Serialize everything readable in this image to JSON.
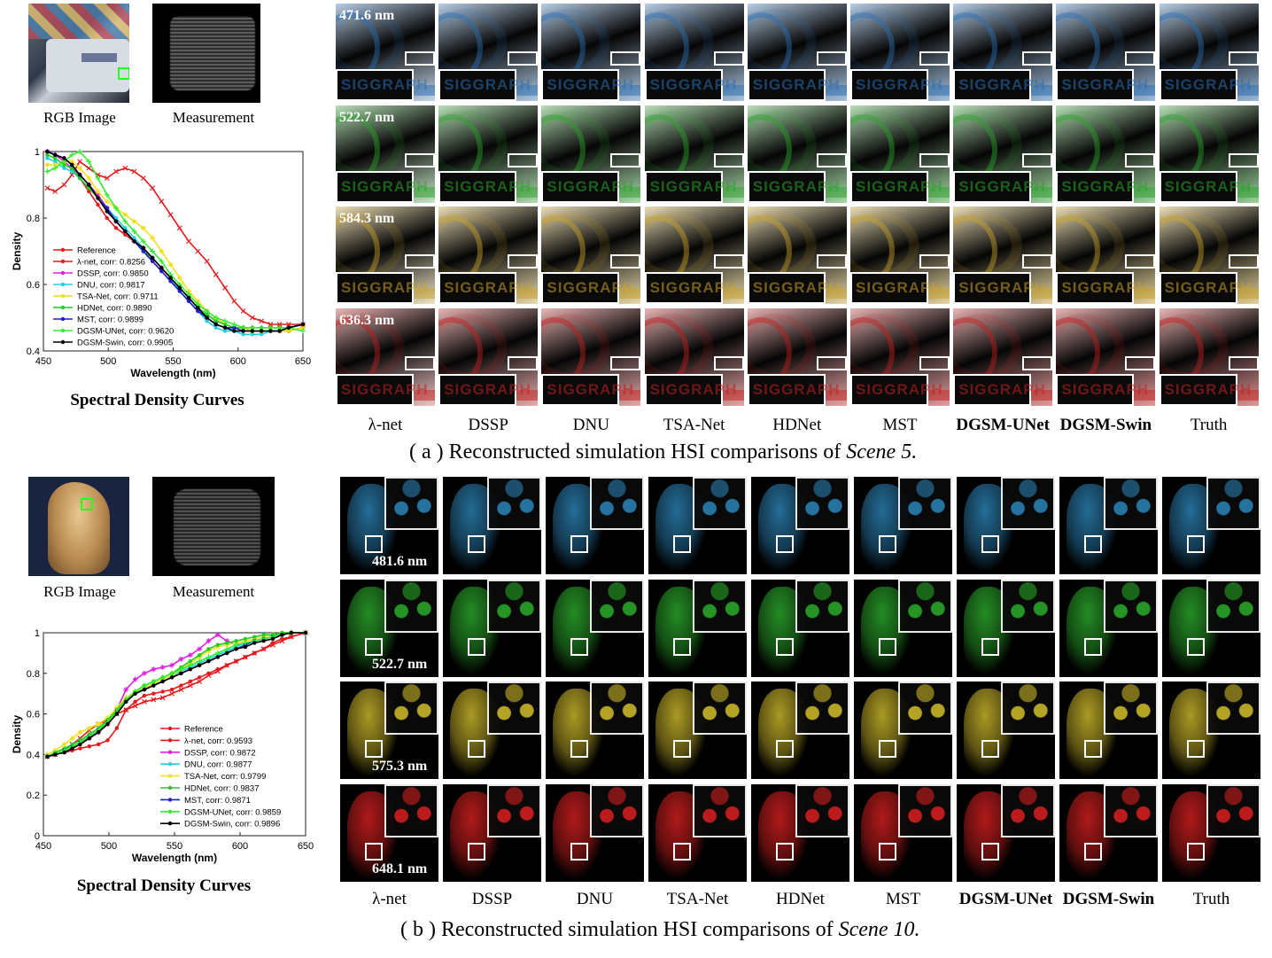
{
  "panel_a": {
    "rgb_label": "RGB Image",
    "measurement_label": "Measurement",
    "chart_title": "Spectral Density Curves",
    "wavelengths": [
      "471.6 nm",
      "522.7 nm",
      "584.3 nm",
      "636.3 nm"
    ],
    "row_colors": [
      "#2a6fb5",
      "#2aa52a",
      "#c9a227",
      "#c42020"
    ],
    "inset_text": "SIGGRAPH",
    "methods": [
      "λ-net",
      "DSSP",
      "DNU",
      "TSA-Net",
      "HDNet",
      "MST",
      "DGSM-UNet",
      "DGSM-Swin",
      "Truth"
    ],
    "bold_methods": [
      "DGSM-UNet",
      "DGSM-Swin"
    ],
    "caption_prefix": "( a ) Reconstructed simulation HSI comparisons of ",
    "caption_scene": "Scene 5."
  },
  "panel_b": {
    "rgb_label": "RGB Image",
    "measurement_label": "Measurement",
    "chart_title": "Spectral Density Curves",
    "wavelengths": [
      "481.6 nm",
      "522.7 nm",
      "575.3 nm",
      "648.1 nm"
    ],
    "row_colors": [
      "#2a7fb0",
      "#2aa52a",
      "#c9b52a",
      "#d01f1f"
    ],
    "methods": [
      "λ-net",
      "DSSP",
      "DNU",
      "TSA-Net",
      "HDNet",
      "MST",
      "DGSM-UNet",
      "DGSM-Swin",
      "Truth"
    ],
    "bold_methods": [
      "DGSM-UNet",
      "DGSM-Swin"
    ],
    "caption_prefix": "( b ) Reconstructed simulation HSI comparisons of ",
    "caption_scene": "Scene 10."
  },
  "chart_data": [
    {
      "type": "line",
      "title": "",
      "xlabel": "Wavelength (nm)",
      "ylabel": "Density",
      "xlim": [
        450,
        650
      ],
      "ylim": [
        0.4,
        1
      ],
      "xticks": [
        450,
        500,
        550,
        600,
        650
      ],
      "yticks": [
        0.4,
        0.6,
        0.8,
        1
      ],
      "legend_position": "lower-left",
      "x": [
        453,
        459,
        466,
        472,
        478,
        485,
        492,
        499,
        506,
        513,
        520,
        527,
        534,
        541,
        548,
        555,
        562,
        569,
        576,
        583,
        590,
        597,
        604,
        611,
        618,
        625,
        632,
        639,
        650
      ],
      "series": [
        {
          "name": "Reference",
          "color": "#e41a1c",
          "marker": "o",
          "values": [
            1.0,
            0.99,
            0.98,
            0.96,
            0.92,
            0.88,
            0.84,
            0.8,
            0.77,
            0.75,
            0.73,
            0.7,
            0.67,
            0.64,
            0.61,
            0.58,
            0.55,
            0.52,
            0.5,
            0.48,
            0.47,
            0.46,
            0.46,
            0.46,
            0.46,
            0.46,
            0.46,
            0.46,
            0.47
          ]
        },
        {
          "name": "λ-net, corr: 0.8256",
          "color": "#e41a1c",
          "marker": "x",
          "values": [
            0.89,
            0.88,
            0.9,
            0.93,
            0.97,
            0.95,
            0.93,
            0.92,
            0.94,
            0.95,
            0.94,
            0.92,
            0.89,
            0.85,
            0.81,
            0.77,
            0.73,
            0.7,
            0.67,
            0.63,
            0.59,
            0.55,
            0.52,
            0.5,
            0.49,
            0.48,
            0.48,
            0.48,
            0.48
          ]
        },
        {
          "name": "DSSP, corr: 0.9850",
          "color": "#e020e0",
          "marker": "*",
          "values": [
            1.0,
            0.99,
            0.97,
            0.95,
            0.93,
            0.9,
            0.87,
            0.83,
            0.79,
            0.76,
            0.73,
            0.71,
            0.68,
            0.65,
            0.62,
            0.59,
            0.56,
            0.53,
            0.51,
            0.49,
            0.48,
            0.47,
            0.47,
            0.46,
            0.46,
            0.46,
            0.46,
            0.47,
            0.48
          ]
        },
        {
          "name": "DNU, corr: 0.9817",
          "color": "#22d0e0",
          "marker": "o",
          "values": [
            0.98,
            0.97,
            0.95,
            0.94,
            0.92,
            0.89,
            0.86,
            0.83,
            0.8,
            0.77,
            0.74,
            0.71,
            0.68,
            0.65,
            0.62,
            0.58,
            0.55,
            0.52,
            0.49,
            0.47,
            0.46,
            0.46,
            0.45,
            0.45,
            0.45,
            0.46,
            0.46,
            0.47,
            0.48
          ]
        },
        {
          "name": "TSA-Net, corr: 0.9711",
          "color": "#f0e020",
          "marker": "*",
          "values": [
            0.96,
            0.96,
            0.97,
            0.97,
            0.95,
            0.92,
            0.88,
            0.85,
            0.83,
            0.81,
            0.79,
            0.77,
            0.74,
            0.7,
            0.66,
            0.62,
            0.58,
            0.55,
            0.52,
            0.5,
            0.48,
            0.47,
            0.47,
            0.46,
            0.46,
            0.46,
            0.46,
            0.46,
            0.47
          ]
        },
        {
          "name": "HDNet, corr: 0.9890",
          "color": "#22cc22",
          "marker": "o",
          "values": [
            0.99,
            0.98,
            0.96,
            0.95,
            0.92,
            0.89,
            0.86,
            0.82,
            0.79,
            0.76,
            0.73,
            0.7,
            0.68,
            0.65,
            0.62,
            0.59,
            0.56,
            0.53,
            0.51,
            0.49,
            0.48,
            0.47,
            0.47,
            0.47,
            0.47,
            0.47,
            0.47,
            0.47,
            0.48
          ]
        },
        {
          "name": "MST, corr: 0.9899",
          "color": "#1f1fd0",
          "marker": "o",
          "values": [
            1.0,
            0.99,
            0.98,
            0.96,
            0.93,
            0.9,
            0.86,
            0.83,
            0.79,
            0.76,
            0.73,
            0.7,
            0.67,
            0.64,
            0.61,
            0.58,
            0.55,
            0.52,
            0.5,
            0.48,
            0.47,
            0.47,
            0.46,
            0.46,
            0.46,
            0.46,
            0.46,
            0.47,
            0.48
          ]
        },
        {
          "name": "DGSM-UNet, corr: 0.9620",
          "color": "#33ee33",
          "marker": "+",
          "values": [
            0.94,
            0.95,
            0.97,
            0.99,
            1.0,
            0.97,
            0.92,
            0.87,
            0.83,
            0.79,
            0.76,
            0.73,
            0.7,
            0.67,
            0.63,
            0.6,
            0.57,
            0.54,
            0.52,
            0.5,
            0.49,
            0.48,
            0.47,
            0.47,
            0.47,
            0.47,
            0.47,
            0.47,
            0.46
          ]
        },
        {
          "name": "DGSM-Swin, corr: 0.9905",
          "color": "#000000",
          "marker": "o",
          "values": [
            1.0,
            0.99,
            0.98,
            0.96,
            0.93,
            0.9,
            0.86,
            0.82,
            0.79,
            0.76,
            0.73,
            0.71,
            0.68,
            0.65,
            0.62,
            0.59,
            0.56,
            0.53,
            0.5,
            0.48,
            0.47,
            0.46,
            0.46,
            0.46,
            0.46,
            0.46,
            0.46,
            0.47,
            0.48
          ]
        }
      ]
    },
    {
      "type": "line",
      "title": "",
      "xlabel": "Wavelength (nm)",
      "ylabel": "Density",
      "xlim": [
        450,
        650
      ],
      "ylim": [
        0,
        1
      ],
      "xticks": [
        450,
        500,
        550,
        600,
        650
      ],
      "yticks": [
        0,
        0.2,
        0.4,
        0.6,
        0.8,
        1
      ],
      "legend_position": "lower-right",
      "x": [
        453,
        459,
        466,
        472,
        478,
        485,
        492,
        499,
        506,
        513,
        520,
        527,
        534,
        541,
        548,
        555,
        562,
        569,
        576,
        583,
        590,
        597,
        604,
        611,
        618,
        625,
        632,
        639,
        650
      ],
      "series": [
        {
          "name": "Reference",
          "color": "#e41a1c",
          "marker": "o",
          "values": [
            0.39,
            0.4,
            0.41,
            0.42,
            0.43,
            0.44,
            0.45,
            0.47,
            0.53,
            0.62,
            0.66,
            0.69,
            0.7,
            0.71,
            0.72,
            0.74,
            0.76,
            0.78,
            0.8,
            0.82,
            0.84,
            0.86,
            0.88,
            0.9,
            0.92,
            0.95,
            0.97,
            0.98,
            1.0
          ]
        },
        {
          "name": "λ-net, corr: 0.9593",
          "color": "#e41a1c",
          "marker": "x",
          "values": [
            0.39,
            0.4,
            0.42,
            0.45,
            0.48,
            0.52,
            0.55,
            0.57,
            0.6,
            0.62,
            0.64,
            0.66,
            0.67,
            0.68,
            0.7,
            0.72,
            0.74,
            0.76,
            0.79,
            0.81,
            0.84,
            0.86,
            0.88,
            0.9,
            0.92,
            0.94,
            0.96,
            0.98,
            1.0
          ]
        },
        {
          "name": "DSSP, corr: 0.9872",
          "color": "#e020e0",
          "marker": "*",
          "values": [
            0.39,
            0.4,
            0.42,
            0.44,
            0.46,
            0.48,
            0.51,
            0.55,
            0.62,
            0.72,
            0.77,
            0.8,
            0.82,
            0.83,
            0.84,
            0.87,
            0.89,
            0.92,
            0.96,
            0.99,
            0.96,
            0.94,
            0.95,
            0.96,
            0.97,
            0.98,
            0.99,
            1.0,
            1.0
          ]
        },
        {
          "name": "DNU, corr: 0.9877",
          "color": "#22d0e0",
          "marker": "o",
          "values": [
            0.39,
            0.4,
            0.42,
            0.44,
            0.46,
            0.49,
            0.52,
            0.56,
            0.61,
            0.66,
            0.7,
            0.73,
            0.75,
            0.77,
            0.79,
            0.81,
            0.83,
            0.85,
            0.87,
            0.89,
            0.91,
            0.93,
            0.95,
            0.96,
            0.97,
            0.98,
            1.0,
            1.0,
            1.0
          ]
        },
        {
          "name": "TSA-Net, corr: 0.9799",
          "color": "#f0e020",
          "marker": "*",
          "values": [
            0.4,
            0.42,
            0.45,
            0.48,
            0.51,
            0.53,
            0.55,
            0.58,
            0.63,
            0.68,
            0.71,
            0.73,
            0.75,
            0.77,
            0.79,
            0.82,
            0.85,
            0.88,
            0.91,
            0.93,
            0.94,
            0.95,
            0.96,
            0.97,
            0.98,
            0.99,
            1.0,
            1.0,
            1.0
          ]
        },
        {
          "name": "HDNet, corr: 0.9837",
          "color": "#22cc22",
          "marker": "o",
          "values": [
            0.39,
            0.41,
            0.43,
            0.45,
            0.47,
            0.5,
            0.53,
            0.57,
            0.62,
            0.67,
            0.71,
            0.74,
            0.76,
            0.78,
            0.8,
            0.83,
            0.86,
            0.89,
            0.92,
            0.94,
            0.95,
            0.96,
            0.97,
            0.98,
            0.99,
            0.99,
            1.0,
            1.0,
            1.0
          ]
        },
        {
          "name": "MST, corr: 0.9871",
          "color": "#1f1fd0",
          "marker": "o",
          "values": [
            0.39,
            0.4,
            0.42,
            0.44,
            0.46,
            0.49,
            0.52,
            0.56,
            0.61,
            0.66,
            0.7,
            0.72,
            0.74,
            0.76,
            0.78,
            0.8,
            0.82,
            0.84,
            0.86,
            0.88,
            0.9,
            0.92,
            0.94,
            0.96,
            0.97,
            0.98,
            0.99,
            1.0,
            1.0
          ]
        },
        {
          "name": "DGSM-UNet, corr: 0.9859",
          "color": "#33ee33",
          "marker": "+",
          "values": [
            0.39,
            0.4,
            0.42,
            0.44,
            0.46,
            0.49,
            0.52,
            0.56,
            0.61,
            0.67,
            0.71,
            0.74,
            0.76,
            0.78,
            0.8,
            0.82,
            0.84,
            0.86,
            0.88,
            0.9,
            0.92,
            0.94,
            0.95,
            0.96,
            0.97,
            0.98,
            0.99,
            1.0,
            1.0
          ]
        },
        {
          "name": "DGSM-Swin, corr: 0.9896",
          "color": "#000000",
          "marker": "o",
          "values": [
            0.39,
            0.4,
            0.41,
            0.43,
            0.45,
            0.48,
            0.51,
            0.55,
            0.6,
            0.66,
            0.7,
            0.72,
            0.74,
            0.76,
            0.78,
            0.8,
            0.82,
            0.84,
            0.86,
            0.88,
            0.9,
            0.92,
            0.93,
            0.95,
            0.96,
            0.97,
            0.99,
            1.0,
            1.0
          ]
        }
      ]
    }
  ]
}
